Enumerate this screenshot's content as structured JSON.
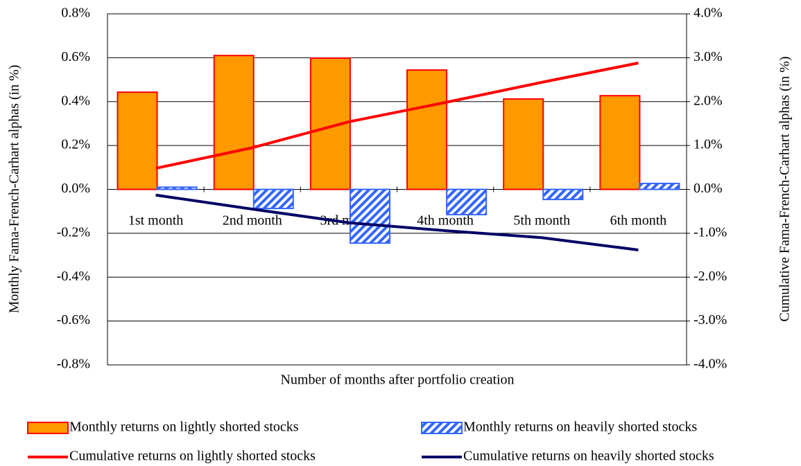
{
  "chart_data": {
    "type": "bar_line",
    "x_label": "Number of months after portfolio creation",
    "y_label": "Monthly  Fama-French-Carhart alphas (in %)",
    "y2_label": "Cumulative  Fama-French-Carhart alphas (in %)",
    "categories": [
      "1st month",
      "2nd month",
      "3rd month",
      "4th month",
      "5th month",
      "6th month"
    ],
    "series": [
      {
        "name": "Monthly returns on lightly shorted stocks",
        "type": "bar",
        "color": "#ff9900",
        "edge": "#ff0000",
        "values": [
          0.443,
          0.61,
          0.598,
          0.544,
          0.412,
          0.427
        ]
      },
      {
        "name": "Monthly returns on heavily shorted stocks",
        "type": "bar",
        "hatch": true,
        "color": "#3366ff",
        "values": [
          0.01,
          -0.087,
          -0.245,
          -0.115,
          -0.046,
          0.027
        ]
      },
      {
        "name": "Cumulative returns on lightly shorted stocks",
        "type": "line",
        "axis": "y2",
        "color": "#ff0000",
        "values": [
          0.48,
          0.95,
          1.54,
          1.98,
          2.44,
          2.88
        ]
      },
      {
        "name": "Cumulative returns on heavily shorted stocks",
        "type": "line",
        "axis": "y2",
        "color": "#000066",
        "values": [
          -0.13,
          -0.45,
          -0.76,
          -0.94,
          -1.1,
          -1.38
        ]
      }
    ],
    "ylim": [
      -0.8,
      0.8
    ],
    "yticks": [
      {
        "value": -0.8,
        "label": "-0.8%"
      },
      {
        "value": -0.6,
        "label": "-0.6%"
      },
      {
        "value": -0.4,
        "label": "-0.4%"
      },
      {
        "value": -0.2,
        "label": "-0.2%"
      },
      {
        "value": 0,
        "label": "0.0%"
      },
      {
        "value": 0.2,
        "label": "0.2%"
      },
      {
        "value": 0.4,
        "label": "0.4%"
      },
      {
        "value": 0.6,
        "label": "0.6%"
      },
      {
        "value": 0.8,
        "label": "0.8%"
      }
    ],
    "y2lim": [
      -4,
      4
    ],
    "y2ticks": [
      {
        "value": -4,
        "label": "-4.0%"
      },
      {
        "value": -3,
        "label": "-3.0%"
      },
      {
        "value": -2,
        "label": "-2.0%"
      },
      {
        "value": -1,
        "label": "-1.0%"
      },
      {
        "value": 0,
        "label": "0.0%"
      },
      {
        "value": 1,
        "label": "1.0%"
      },
      {
        "value": 2,
        "label": "2.0%"
      },
      {
        "value": 3,
        "label": "3.0%"
      },
      {
        "value": 4,
        "label": "4.0%"
      }
    ],
    "grid": true
  }
}
